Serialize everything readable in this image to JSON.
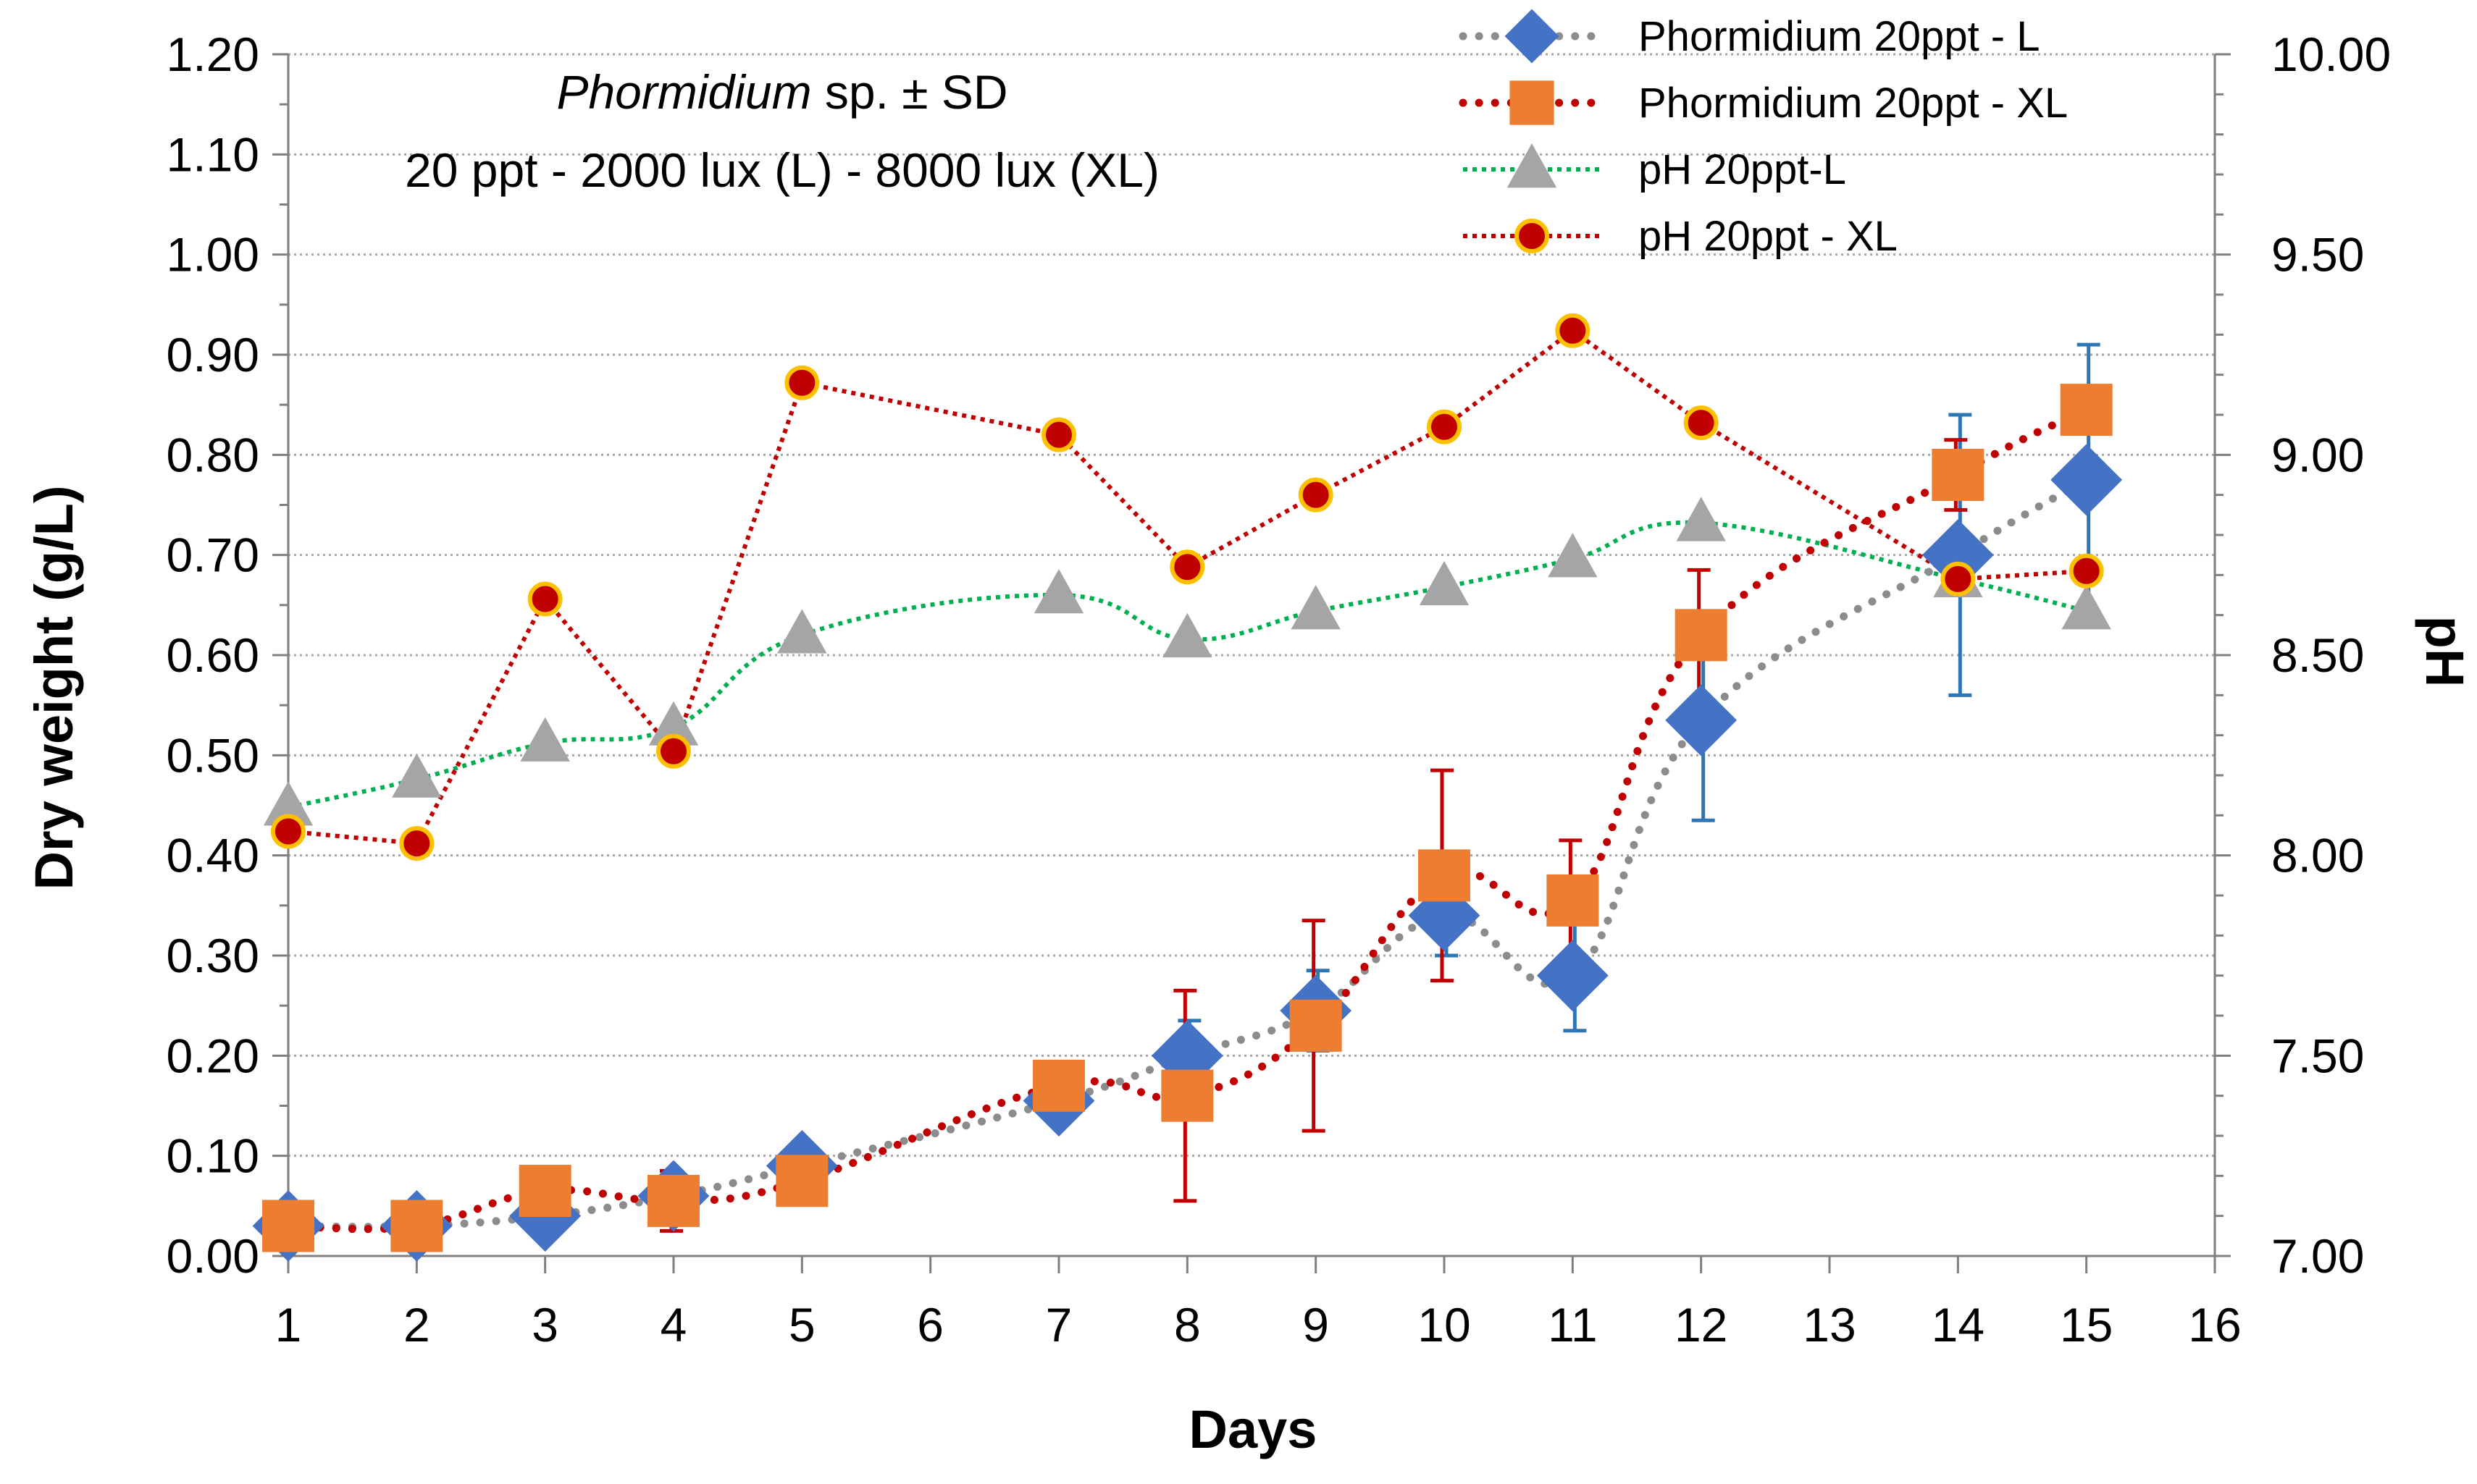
{
  "chart_data": {
    "type": "line",
    "annotation": {
      "line1_italic": "Phormidium",
      "line1_rest": " sp. ± SD",
      "line2": "20 ppt - 2000 lux (L) - 8000 lux (XL)"
    },
    "xlabel": "Days",
    "ylabel": "Dry weight (g/L)",
    "y2label": "pH",
    "xlim": [
      1,
      16
    ],
    "xticks": [
      "1",
      "2",
      "3",
      "4",
      "5",
      "6",
      "7",
      "8",
      "9",
      "10",
      "11",
      "12",
      "13",
      "14",
      "15",
      "16"
    ],
    "ylim": [
      0,
      1.2
    ],
    "yticks": [
      "0.00",
      "0.10",
      "0.20",
      "0.30",
      "0.40",
      "0.50",
      "0.60",
      "0.70",
      "0.80",
      "0.90",
      "1.00",
      "1.10",
      "1.20"
    ],
    "y2lim": [
      7,
      10
    ],
    "y2ticks": [
      "7.00",
      "7.50",
      "8.00",
      "8.50",
      "9.00",
      "9.50",
      "10.00"
    ],
    "grid": true,
    "legend_position": "top-right",
    "series": [
      {
        "name": "Phormidium 20ppt - L",
        "axis": "left",
        "marker": "diamond",
        "color": "#4472C4",
        "line_color": "#8C8C8C",
        "error_color": "#2E75B6",
        "x": [
          1,
          2,
          3,
          4,
          5,
          7,
          8,
          9,
          10,
          11,
          12,
          14,
          15
        ],
        "y": [
          0.03,
          0.03,
          0.04,
          0.06,
          0.09,
          0.155,
          0.2,
          0.245,
          0.34,
          0.28,
          0.535,
          0.7,
          0.775
        ],
        "err": [
          0,
          0,
          0,
          0.02,
          0,
          0,
          0.035,
          0.04,
          0.04,
          0.055,
          0.1,
          0.14,
          0.135
        ]
      },
      {
        "name": "Phormidium 20ppt - XL",
        "axis": "left",
        "marker": "square",
        "color": "#ED7D31",
        "line_color": "#C00000",
        "error_color": "#C00000",
        "x": [
          1,
          2,
          3,
          4,
          5,
          7,
          8,
          9,
          10,
          11,
          12,
          14,
          15
        ],
        "y": [
          0.03,
          0.03,
          0.065,
          0.055,
          0.075,
          0.17,
          0.16,
          0.23,
          0.38,
          0.355,
          0.62,
          0.78,
          0.845
        ],
        "err": [
          0,
          0,
          0,
          0.03,
          0,
          0,
          0.105,
          0.105,
          0.105,
          0.06,
          0.065,
          0.035,
          0
        ]
      },
      {
        "name": "pH 20ppt-L",
        "axis": "right",
        "marker": "triangle",
        "color": "#A5A5A5",
        "line_color": "#00B050",
        "x": [
          1,
          2,
          3,
          4,
          5,
          7,
          8,
          9,
          10,
          11,
          12,
          14,
          15
        ],
        "y": [
          8.12,
          8.19,
          8.28,
          8.32,
          8.55,
          8.65,
          8.54,
          8.61,
          8.67,
          8.74,
          8.83,
          8.69,
          8.61
        ]
      },
      {
        "name": "pH 20ppt - XL",
        "axis": "right",
        "marker": "circle",
        "color": "#C00000",
        "marker_edge": "#FFC000",
        "line_color": "#C00000",
        "x": [
          1,
          2,
          3,
          4,
          5,
          7,
          8,
          9,
          10,
          11,
          12,
          14,
          15
        ],
        "y": [
          8.06,
          8.03,
          8.64,
          8.26,
          9.18,
          9.05,
          8.72,
          8.9,
          9.07,
          9.31,
          9.08,
          8.69,
          8.71
        ]
      }
    ]
  }
}
